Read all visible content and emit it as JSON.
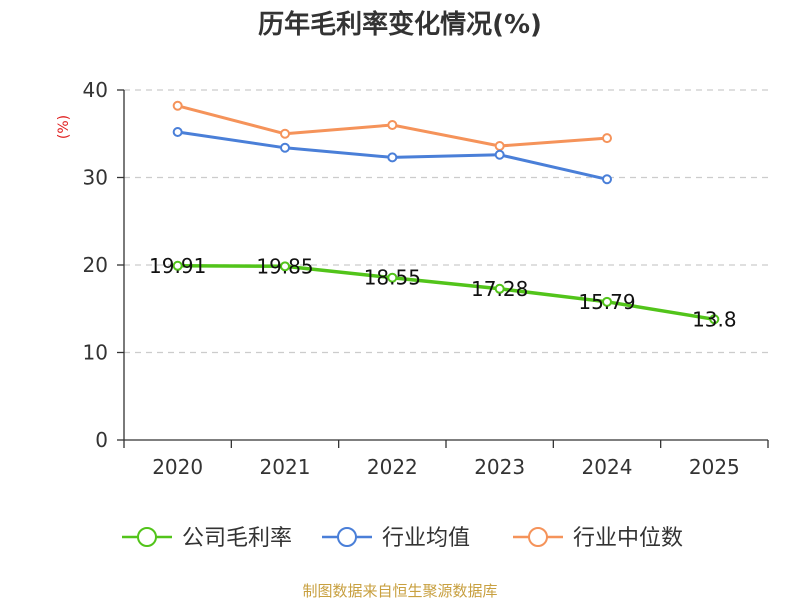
{
  "chart_data": {
    "type": "line",
    "title": "历年毛利率变化情况(%)",
    "ylabel": "(%)",
    "xlabel": "",
    "categories": [
      "2020",
      "2021",
      "2022",
      "2023",
      "2024",
      "2025"
    ],
    "ylim": [
      0,
      40
    ],
    "yticks": [
      0,
      10,
      20,
      30,
      40
    ],
    "grid": true,
    "legend_position": "bottom",
    "series": [
      {
        "name": "公司毛利率",
        "color": "#52c41a",
        "values": [
          19.91,
          19.85,
          18.55,
          17.28,
          15.79,
          13.8
        ],
        "labels": [
          "19.91",
          "19.85",
          "18.55",
          "17.28",
          "15.79",
          "13.8"
        ],
        "show_labels": true
      },
      {
        "name": "行业均值",
        "color": "#4a7fd8",
        "values": [
          35.2,
          33.4,
          32.3,
          32.6,
          29.8,
          null
        ],
        "show_labels": false
      },
      {
        "name": "行业中位数",
        "color": "#f5935a",
        "values": [
          38.2,
          35.0,
          36.0,
          33.6,
          34.5,
          null
        ],
        "show_labels": false
      }
    ]
  },
  "source_text": "制图数据来自恒生聚源数据库"
}
